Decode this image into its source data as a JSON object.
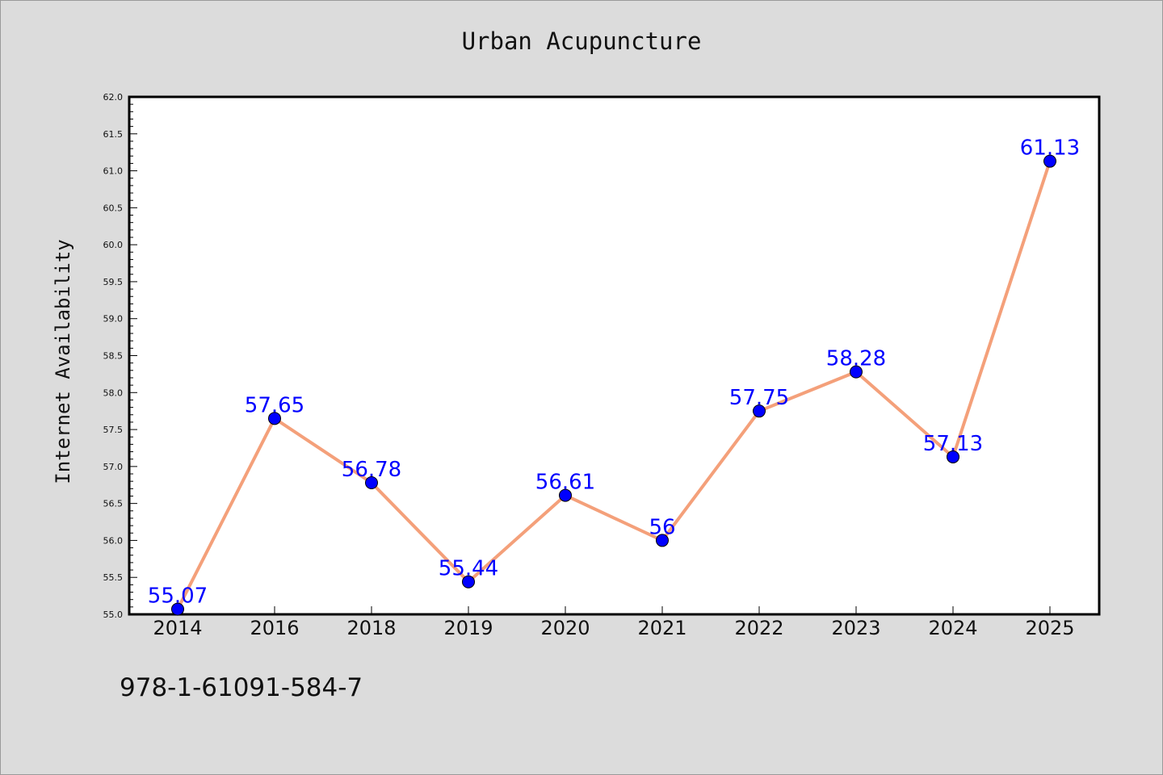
{
  "chart_data": {
    "type": "line",
    "title": "Urban Acupuncture",
    "xlabel": "",
    "ylabel": "Internet Availability",
    "categories": [
      "2014",
      "2016",
      "2018",
      "2019",
      "2020",
      "2021",
      "2022",
      "2023",
      "2024",
      "2025"
    ],
    "series": [
      {
        "values": [
          55.07,
          57.65,
          56.78,
          55.44,
          56.61,
          56,
          57.75,
          58.28,
          57.13,
          61.13
        ],
        "data_labels": [
          "55.07",
          "57.65",
          "56.78",
          "55.44",
          "56.61",
          "56",
          "57.75",
          "58.28",
          "57.13",
          "61.13"
        ],
        "line_color": "#f4a07a",
        "marker_color": "#0000ff"
      }
    ],
    "ylim": [
      55.0,
      62.0
    ],
    "yticks": [
      "55.0",
      "55.5",
      "56.0",
      "56.5",
      "57.0",
      "57.5",
      "58.0",
      "58.5",
      "59.0",
      "59.5",
      "60.0",
      "60.5",
      "61.0",
      "61.5",
      "62.0"
    ],
    "grid": false,
    "legend": "none"
  },
  "footer": {
    "isbn": "978-1-61091-584-7"
  }
}
